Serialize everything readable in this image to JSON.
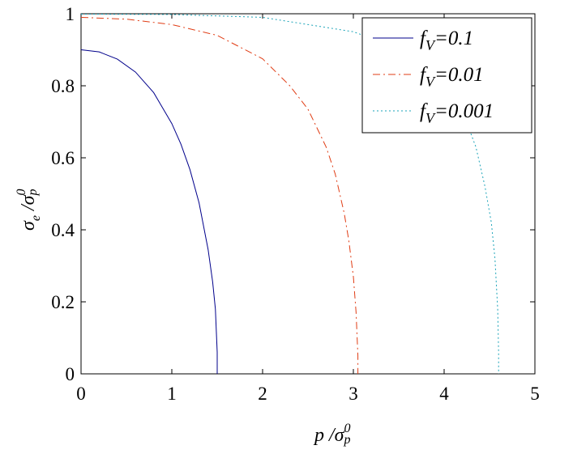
{
  "chart_data": {
    "type": "line",
    "xlabel": {
      "main": "p /σ",
      "sup": "0",
      "sub": "p"
    },
    "ylabel": {
      "main": "σ",
      "sub1": "e",
      "mid": " /σ",
      "sup": "0",
      "sub2": "p"
    },
    "xlim": [
      0,
      5
    ],
    "ylim": [
      0,
      1
    ],
    "xticks": [
      "0",
      "1",
      "2",
      "3",
      "4",
      "5"
    ],
    "yticks": [
      "0",
      "0.2",
      "0.4",
      "0.6",
      "0.8",
      "1"
    ],
    "grid": false,
    "legend_position": "top-right",
    "series": [
      {
        "name": {
          "prefix": "f",
          "sub": "V",
          "value": "=0.1"
        },
        "color": "#00008b",
        "dash": "solid",
        "x": [
          0,
          0.2,
          0.4,
          0.6,
          0.8,
          1.0,
          1.1,
          1.2,
          1.3,
          1.4,
          1.45,
          1.48,
          1.5,
          1.5
        ],
        "y": [
          0.9,
          0.894,
          0.874,
          0.838,
          0.781,
          0.695,
          0.638,
          0.567,
          0.475,
          0.345,
          0.255,
          0.18,
          0.06,
          0
        ]
      },
      {
        "name": {
          "prefix": "f",
          "sub": "V",
          "value": "=0.01"
        },
        "color": "#e03c14",
        "dash": "dashdot",
        "x": [
          0,
          0.5,
          1.0,
          1.5,
          2.0,
          2.3,
          2.5,
          2.7,
          2.8,
          2.9,
          2.95,
          3.0,
          3.03,
          3.05,
          3.05
        ],
        "y": [
          0.99,
          0.985,
          0.97,
          0.94,
          0.875,
          0.8,
          0.735,
          0.63,
          0.555,
          0.445,
          0.37,
          0.27,
          0.17,
          0.05,
          0
        ]
      },
      {
        "name": {
          "prefix": "f",
          "sub": "V",
          "value": "=0.001"
        },
        "color": "#1aa3b8",
        "dash": "dot",
        "x": [
          0,
          1.0,
          2.0,
          3.0,
          3.5,
          3.8,
          4.0,
          4.2,
          4.35,
          4.45,
          4.52,
          4.56,
          4.59,
          4.6,
          4.6
        ],
        "y": [
          0.999,
          0.998,
          0.99,
          0.95,
          0.905,
          0.86,
          0.815,
          0.73,
          0.63,
          0.52,
          0.42,
          0.32,
          0.18,
          0.06,
          0
        ]
      }
    ]
  }
}
